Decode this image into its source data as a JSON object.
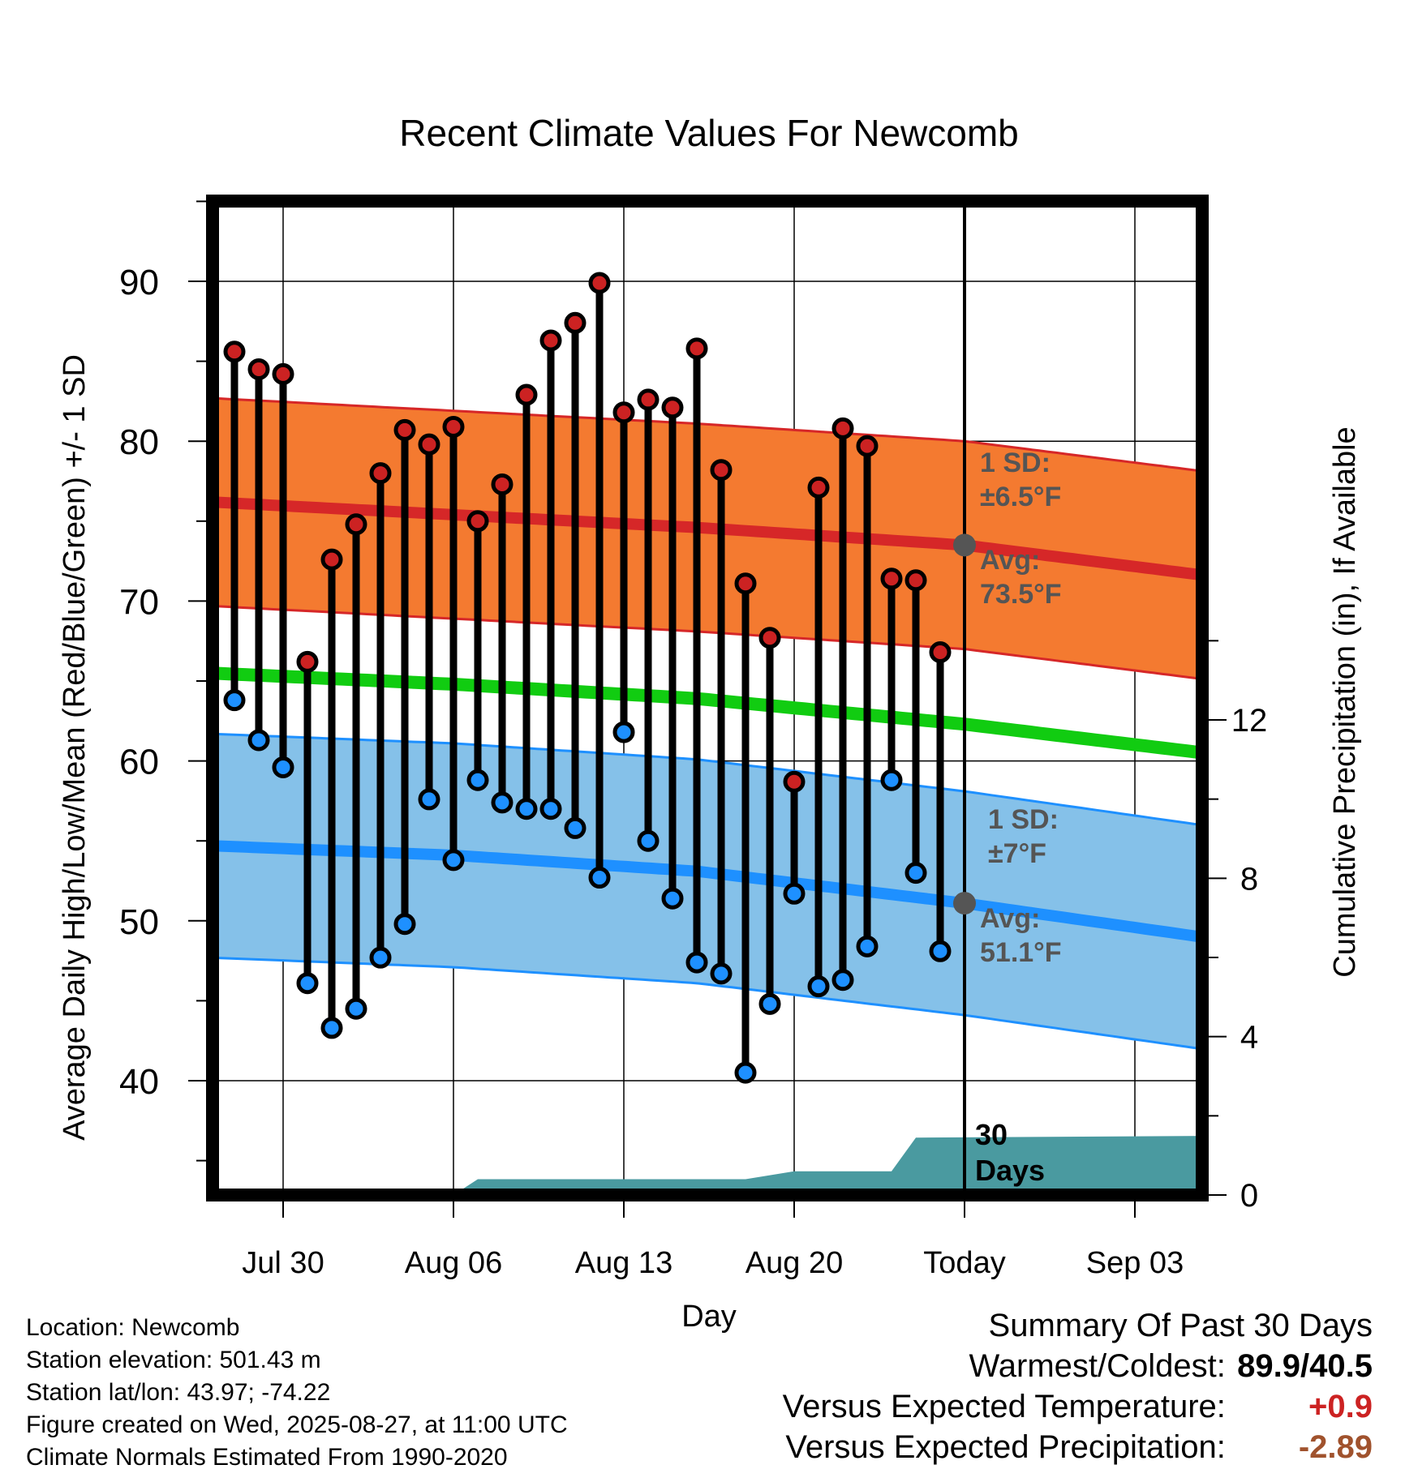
{
  "chart_data": {
    "type": "line",
    "title": "Recent Climate Values For Newcomb",
    "xlabel": "Day",
    "ylabel": "Average Daily High/Low/Mean (Red/Blue/Green) +/- 1 SD",
    "y2label": "Cumulative Precipitation (in), If Available",
    "ylim": [
      32,
      95
    ],
    "y2lim": [
      0,
      17
    ],
    "yticks": [
      40,
      50,
      60,
      70,
      80,
      90
    ],
    "y2ticks": [
      0,
      4,
      8,
      12
    ],
    "x_range": [
      "Jul 27",
      "Sep 08"
    ],
    "xtick_labels": [
      "Jul 30",
      "Aug 06",
      "Aug 13",
      "Aug 20",
      "Today",
      "Sep 03"
    ],
    "xtick_dates": [
      "Jul 30",
      "Aug 06",
      "Aug 13",
      "Aug 20",
      "Aug 27",
      "Sep 03"
    ],
    "grid": true,
    "dates": [
      "Jul 28",
      "Jul 29",
      "Jul 30",
      "Jul 31",
      "Aug 01",
      "Aug 02",
      "Aug 03",
      "Aug 04",
      "Aug 05",
      "Aug 06",
      "Aug 07",
      "Aug 08",
      "Aug 09",
      "Aug 10",
      "Aug 11",
      "Aug 12",
      "Aug 13",
      "Aug 14",
      "Aug 15",
      "Aug 16",
      "Aug 17",
      "Aug 18",
      "Aug 19",
      "Aug 20",
      "Aug 21",
      "Aug 22",
      "Aug 23",
      "Aug 24",
      "Aug 25",
      "Aug 26"
    ],
    "daily_high": [
      85.6,
      84.5,
      84.2,
      66.2,
      72.6,
      74.8,
      78.0,
      80.7,
      79.8,
      80.9,
      75.0,
      77.3,
      82.9,
      86.3,
      87.4,
      89.9,
      81.8,
      82.6,
      82.1,
      85.8,
      78.2,
      71.1,
      67.7,
      58.7,
      77.1,
      80.8,
      79.7,
      71.4,
      71.3,
      66.8
    ],
    "daily_low": [
      63.8,
      61.3,
      59.6,
      46.1,
      43.3,
      44.5,
      47.7,
      49.8,
      57.6,
      53.8,
      58.8,
      57.4,
      57.0,
      57.0,
      55.8,
      52.7,
      61.8,
      55.0,
      51.4,
      47.4,
      46.7,
      40.5,
      44.8,
      51.7,
      45.9,
      46.3,
      48.4,
      58.8,
      53.0,
      48.1
    ],
    "normal_high": {
      "dates": [
        "Jul 27",
        "Aug 06",
        "Aug 16",
        "Aug 27",
        "Sep 08"
      ],
      "values": [
        76.2,
        75.4,
        74.6,
        73.5,
        71.2
      ],
      "sd": 6.5
    },
    "normal_low": {
      "dates": [
        "Jul 27",
        "Aug 06",
        "Aug 16",
        "Aug 27",
        "Sep 08"
      ],
      "values": [
        54.7,
        54.1,
        53.1,
        51.1,
        48.5
      ],
      "sd": 7
    },
    "normal_mean": {
      "dates": [
        "Jul 27",
        "Aug 06",
        "Aug 16",
        "Aug 27",
        "Sep 08"
      ],
      "values": [
        65.5,
        64.8,
        63.9,
        62.3,
        60.1
      ]
    },
    "cumulative_precip": {
      "dates": [
        "Aug 06",
        "Aug 07",
        "Aug 14",
        "Aug 18",
        "Aug 20",
        "Aug 24",
        "Aug 25",
        "Sep 08"
      ],
      "values": [
        0.0,
        0.4,
        0.4,
        0.4,
        0.6,
        0.6,
        1.45,
        1.5
      ]
    },
    "annotations": {
      "high_sd": "1 SD:",
      "high_sd_value": "±6.5°F",
      "high_avg": "Avg:",
      "high_avg_value": "73.5°F",
      "low_sd": "1 SD:",
      "low_sd_value": "±7°F",
      "low_avg": "Avg:",
      "low_avg_value": "51.1°F",
      "days_number": "30",
      "days_label": "Days"
    },
    "colors": {
      "high_band": "#f47a30",
      "high_line": "#d62728",
      "low_band": "#85c1e9",
      "low_line": "#1e90ff",
      "mean_line": "#11cc11",
      "precip": "#4a9aa0",
      "high_dot": "#cc2222",
      "low_dot": "#1e90ff",
      "avg_dot": "#555555"
    }
  },
  "info": {
    "location": "Location: Newcomb",
    "elevation": "Station elevation: 501.43 m",
    "latlon": "Station lat/lon: 43.97; -74.22",
    "created": "Figure created on Wed, 2025-08-27, at 11:00 UTC",
    "normals": "Climate Normals Estimated From 1990-2020"
  },
  "summary": {
    "title": "Summary Of Past 30 Days",
    "warmest_label": "Warmest/Coldest:",
    "warmest_value": "89.9/40.5",
    "temp_label": "Versus Expected Temperature:",
    "temp_value": "+0.9",
    "precip_label": "Versus Expected Precipitation:",
    "precip_value": "-2.89"
  }
}
